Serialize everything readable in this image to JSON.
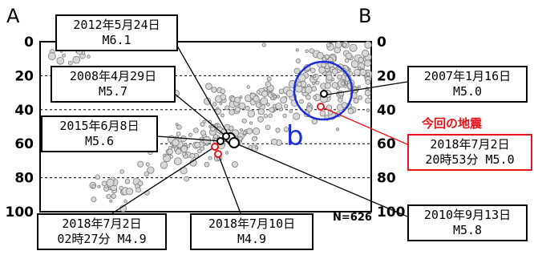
{
  "figure": {
    "end_label_left": "A",
    "end_label_right": "B",
    "region_label": "b",
    "count_label": "N=626",
    "current_event_label": "今回の地震"
  },
  "chart_data": {
    "type": "scatter",
    "title": "",
    "xlabel": "",
    "ylabel": "",
    "ylim": [
      0,
      100
    ],
    "y_axis_inverted": true,
    "y_ticks": [
      0,
      20,
      40,
      60,
      80,
      100
    ],
    "grid": "horizontal dashed at 20, 40, 60, 80",
    "count": "N=626",
    "events": [
      {
        "date": "2012年5月24日",
        "mag": "M6.1",
        "depth": 61,
        "style": "black"
      },
      {
        "date": "2008年4月29日",
        "mag": "M5.7",
        "depth": 61,
        "style": "black"
      },
      {
        "date": "2015年6月8日",
        "mag": "M5.6",
        "depth": 62,
        "style": "black"
      },
      {
        "date": "2018年7月2日",
        "time": "02時27分",
        "mag": "M4.9",
        "depth": 64,
        "style": "red"
      },
      {
        "date": "2018年7月10日",
        "mag": "M4.9",
        "depth": 66,
        "style": "red"
      },
      {
        "date": "2007年1月16日",
        "mag": "M5.0",
        "depth": 32,
        "style": "black"
      },
      {
        "date": "2018年7月2日",
        "time": "20時53分",
        "mag": "M5.0",
        "depth": 38,
        "style": "red",
        "current": true
      },
      {
        "date": "2010年9月13日",
        "mag": "M5.8",
        "depth": 62,
        "style": "black"
      }
    ],
    "region_b": {
      "label": "b",
      "color": "#1c2de0"
    },
    "colors": {
      "background_events": "#7a7a7a",
      "recent_events": "#e8141b",
      "region_circle": "#1c2de0"
    }
  },
  "callouts": {
    "c2012": {
      "line1": "2012年5月24日",
      "line2": "M6.1"
    },
    "c2008": {
      "line1": "2008年4月29日",
      "line2": "M5.7"
    },
    "c2015": {
      "line1": "2015年6月8日",
      "line2": "M5.6"
    },
    "c20180702a": {
      "line1": "2018年7月2日",
      "line2": "02時27分 M4.9"
    },
    "c20180710": {
      "line1": "2018年7月10日",
      "line2": "M4.9"
    },
    "c2007": {
      "line1": "2007年1月16日",
      "line2": "M5.0"
    },
    "c20180702b": {
      "line1": "2018年7月2日",
      "line2": "20時53分 M5.0"
    },
    "c2010": {
      "line1": "2010年9月13日",
      "line2": "M5.8"
    }
  }
}
